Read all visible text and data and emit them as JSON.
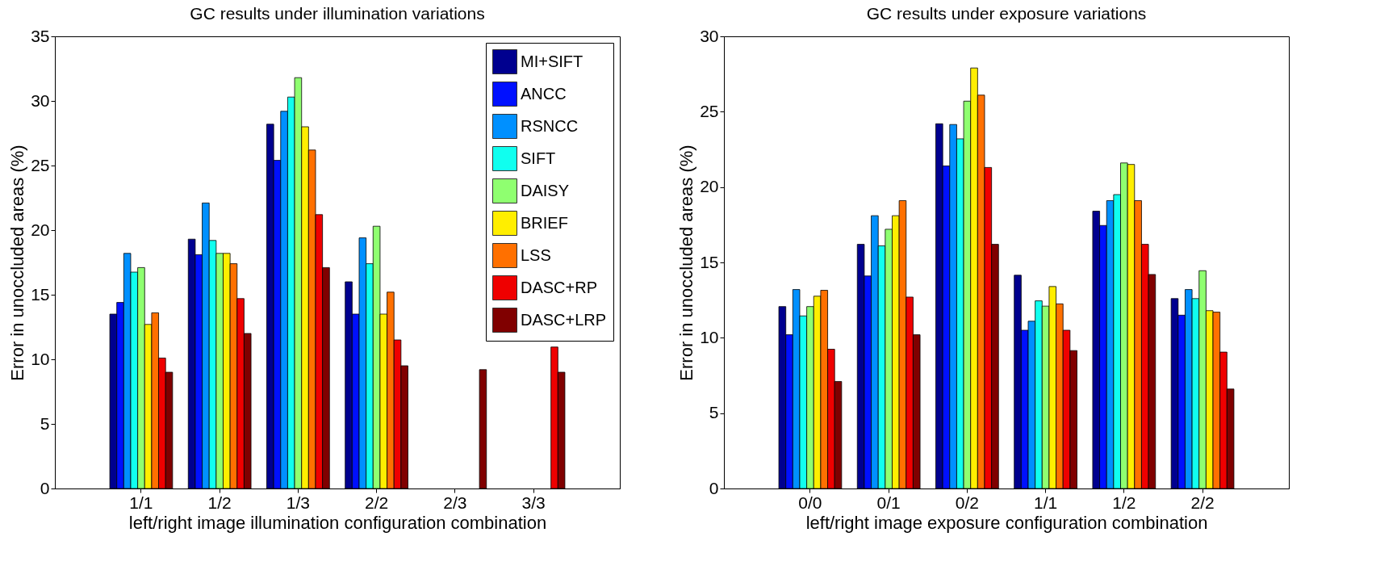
{
  "chart_data": [
    {
      "type": "bar",
      "title": "GC results under illumination variations",
      "xlabel": "left/right image illumination configuration combination",
      "ylabel": "Error in unoccluded areas (%)",
      "categories": [
        "1/1",
        "1/2",
        "1/3",
        "2/2",
        "2/3",
        "3/3"
      ],
      "ylim": [
        0,
        35
      ],
      "yticks": [
        0,
        5,
        10,
        15,
        20,
        25,
        30,
        35
      ],
      "legend": "top right",
      "series": [
        {
          "name": "MI+SIFT",
          "color": "#00008f",
          "values": [
            13.5,
            19.3,
            28.2,
            16.0,
            null,
            null
          ]
        },
        {
          "name": "ANCC",
          "color": "#0010ff",
          "values": [
            14.4,
            18.1,
            25.4,
            13.5,
            null,
            null
          ]
        },
        {
          "name": "RSNCC",
          "color": "#0090ff",
          "values": [
            18.2,
            22.1,
            29.2,
            19.4,
            null,
            null
          ]
        },
        {
          "name": "SIFT",
          "color": "#10ffef",
          "values": [
            16.75,
            19.2,
            30.3,
            17.4,
            null,
            null
          ]
        },
        {
          "name": "DAISY",
          "color": "#8fff70",
          "values": [
            17.1,
            18.2,
            31.8,
            20.3,
            null,
            null
          ]
        },
        {
          "name": "BRIEF",
          "color": "#ffee00",
          "values": [
            12.7,
            18.2,
            28.0,
            13.5,
            null,
            null
          ]
        },
        {
          "name": "LSS",
          "color": "#ff7000",
          "values": [
            13.6,
            17.4,
            26.2,
            15.2,
            null,
            null
          ]
        },
        {
          "name": "DASC+RP",
          "color": "#ef0000",
          "values": [
            10.1,
            14.7,
            21.2,
            11.5,
            null,
            10.95
          ]
        },
        {
          "name": "DASC+LRP",
          "color": "#800000",
          "values": [
            9.0,
            12.0,
            17.1,
            9.5,
            9.2,
            9.0
          ]
        }
      ]
    },
    {
      "type": "bar",
      "title": "GC results under exposure variations",
      "xlabel": "left/right image exposure configuration combination",
      "ylabel": "Error in unoccluded areas (%)",
      "categories": [
        "0/0",
        "0/1",
        "0/2",
        "1/1",
        "1/2",
        "2/2"
      ],
      "ylim": [
        0,
        30
      ],
      "yticks": [
        0,
        5,
        10,
        15,
        20,
        25,
        30
      ],
      "series": [
        {
          "color": "#00008f",
          "values": [
            12.07,
            16.2,
            24.2,
            14.15,
            18.4,
            12.6
          ]
        },
        {
          "color": "#0010ff",
          "values": [
            10.2,
            14.1,
            21.4,
            10.5,
            17.45,
            11.5
          ]
        },
        {
          "color": "#0090ff",
          "values": [
            13.2,
            18.1,
            24.15,
            11.1,
            19.1,
            13.2
          ]
        },
        {
          "color": "#10ffef",
          "values": [
            11.45,
            16.1,
            23.2,
            12.45,
            19.5,
            12.6
          ]
        },
        {
          "color": "#8fff70",
          "values": [
            12.07,
            17.2,
            25.7,
            12.1,
            21.6,
            14.45
          ]
        },
        {
          "color": "#ffee00",
          "values": [
            12.76,
            18.1,
            27.9,
            13.4,
            21.5,
            11.8
          ]
        },
        {
          "color": "#ff7000",
          "values": [
            13.15,
            19.1,
            26.1,
            12.25,
            19.1,
            11.7
          ]
        },
        {
          "color": "#ef0000",
          "values": [
            9.24,
            12.7,
            21.3,
            10.5,
            16.2,
            9.05
          ]
        },
        {
          "color": "#800000",
          "values": [
            7.1,
            10.2,
            16.2,
            9.15,
            14.2,
            6.6
          ]
        }
      ]
    }
  ]
}
